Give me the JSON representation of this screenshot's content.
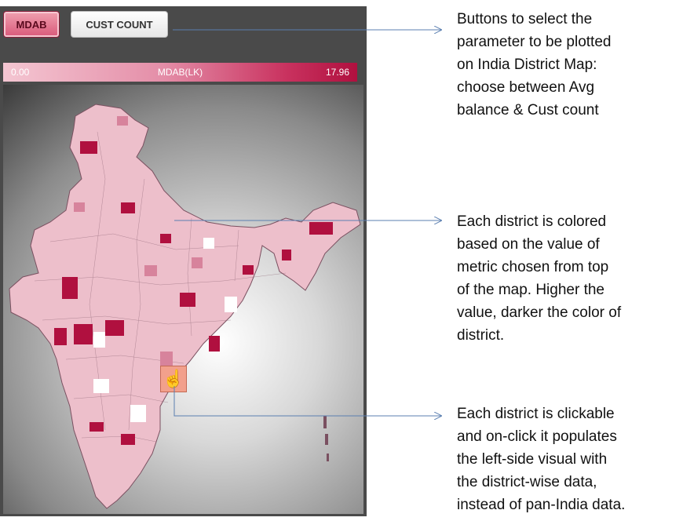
{
  "buttons": {
    "mdab_label": "MDAB",
    "cust_count_label": "CUST COUNT"
  },
  "legend": {
    "min": "0.00",
    "title": "MDAB(LK)",
    "max": "17.96",
    "color_low": "#f4c6d2",
    "color_high": "#b0103f"
  },
  "map": {
    "region": "India District Map"
  },
  "annotations": [
    {
      "lines": [
        "Buttons to select the",
        "parameter to be plotted",
        "on India District Map:",
        "choose between Avg",
        "balance & Cust count"
      ]
    },
    {
      "lines": [
        "Each district is colored",
        "based on the value of",
        "metric chosen from top",
        "of the map. Higher the",
        "value, darker the color of",
        "district."
      ]
    },
    {
      "lines": [
        "Each district is clickable",
        "and on-click it populates",
        "the left-side visual with",
        "the district-wise data,",
        "instead of pan-India data."
      ]
    }
  ],
  "colors": {
    "connector": "#5b7fb0",
    "district_light": "#edbfcb",
    "district_mid": "#d7839c",
    "district_dark": "#b0103f"
  },
  "icons": {
    "cursor": "hand-pointer-icon"
  }
}
